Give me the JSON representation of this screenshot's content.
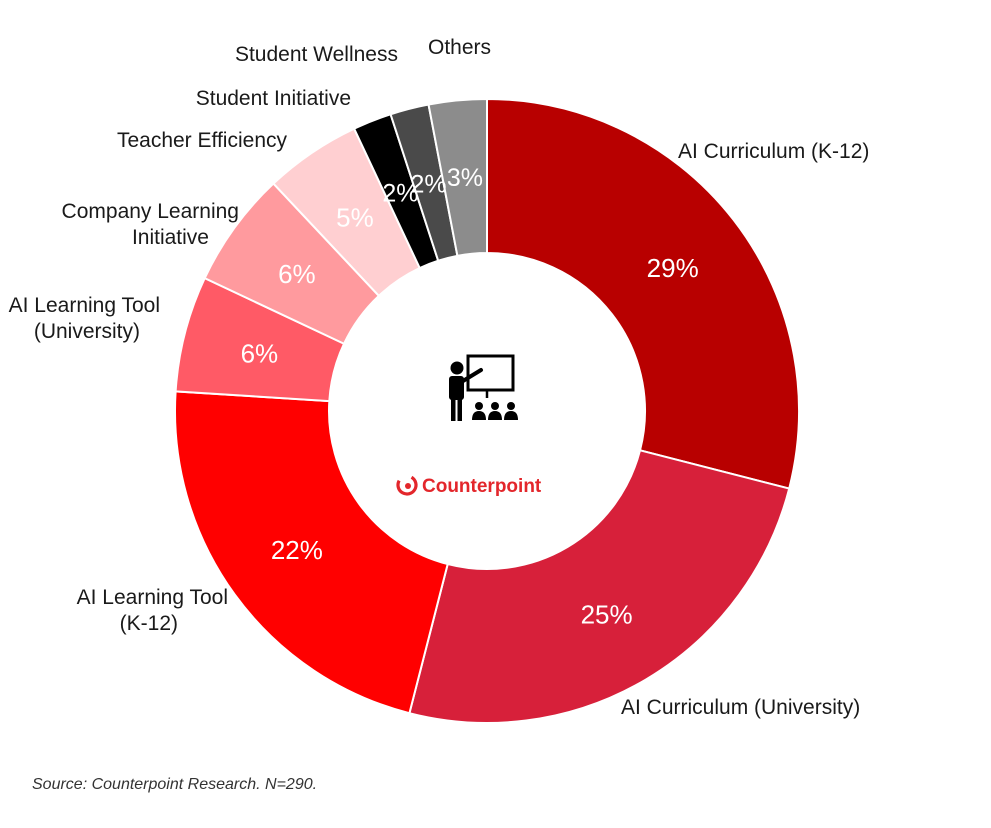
{
  "chart_data": {
    "type": "pie",
    "variant": "donut",
    "start_angle_deg": 0,
    "direction": "clockwise",
    "slices": [
      {
        "label": "AI Curriculum (K-12)",
        "value": 29,
        "value_label": "29%",
        "color": "#B80000"
      },
      {
        "label": "AI Curriculum (University)",
        "value": 25,
        "value_label": "25%",
        "color": "#D7203A"
      },
      {
        "label": "AI Learning Tool (K-12)",
        "value": 22,
        "value_label": "22%",
        "color": "#FF0000"
      },
      {
        "label": "AI Learning Tool (University)",
        "value": 6,
        "value_label": "6%",
        "color": "#FF5A66"
      },
      {
        "label": "Company Learning Initiative",
        "value": 6,
        "value_label": "6%",
        "color": "#FF9A9E"
      },
      {
        "label": "Teacher Efficiency",
        "value": 5,
        "value_label": "5%",
        "color": "#FFCFD1"
      },
      {
        "label": "Student Initiative",
        "value": 2,
        "value_label": "2%",
        "color": "#000000"
      },
      {
        "label": "Student Wellness",
        "value": 2,
        "value_label": "2%",
        "color": "#4A4A4A"
      },
      {
        "label": "Others",
        "value": 3,
        "value_label": "3%",
        "color": "#8C8C8C"
      }
    ],
    "category_labels": [
      {
        "lines": [
          "AI Curriculum (K-12)"
        ]
      },
      {
        "lines": [
          "AI Curriculum (University)"
        ]
      },
      {
        "lines": [
          "AI Learning Tool",
          "(K-12)"
        ]
      },
      {
        "lines": [
          "AI Learning Tool",
          "(University)"
        ]
      },
      {
        "lines": [
          "Company Learning",
          "Initiative"
        ]
      },
      {
        "lines": [
          "Teacher Efficiency"
        ]
      },
      {
        "lines": [
          "Student Initiative"
        ]
      },
      {
        "lines": [
          "Student Wellness"
        ]
      },
      {
        "lines": [
          "Others"
        ]
      }
    ]
  },
  "center": {
    "icon": "teacher-presentation-icon",
    "logo_text": "Counterpoint",
    "logo_color": "#E3262B"
  },
  "source_note": "Source: Counterpoint Research. N=290."
}
